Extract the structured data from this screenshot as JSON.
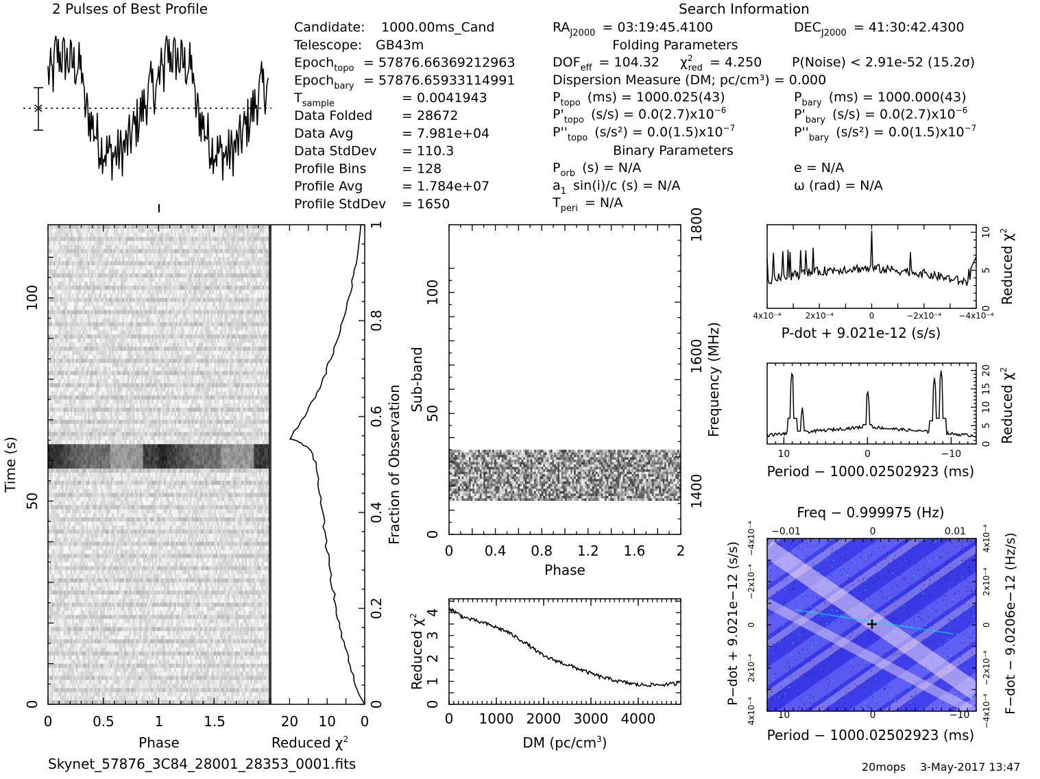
{
  "titles": {
    "profile": "2 Pulses of Best Profile",
    "search": "Search Information",
    "folding": "Folding Parameters",
    "binary": "Binary Parameters",
    "file": "Skynet_57876_3C84_28001_28353_0001.fits",
    "footer_user": "20mops",
    "footer_date": "3-May-2017 13:47"
  },
  "info_left": [
    {
      "label": "Candidate:",
      "value": "1000.00ms_Cand"
    },
    {
      "label": "Telescope:",
      "value": "GB43m"
    },
    {
      "label": "Epoch",
      "sub": "topo",
      "value": "= 57876.66369212963"
    },
    {
      "label": "Epoch",
      "sub": "bary",
      "value": "= 57876.65933114991"
    },
    {
      "label": "T",
      "sub": "sample",
      "value": "= 0.0041943"
    },
    {
      "label": "Data Folded",
      "value": "= 28672"
    },
    {
      "label": "Data Avg",
      "value": "= 7.981e+04"
    },
    {
      "label": "Data StdDev",
      "value": "= 110.3"
    },
    {
      "label": "Profile Bins",
      "value": "= 128"
    },
    {
      "label": "Profile Avg",
      "value": "= 1.784e+07"
    },
    {
      "label": "Profile StdDev",
      "value": "= 1650"
    }
  ],
  "info_right": {
    "ra": {
      "label": "RA",
      "sub": "J2000",
      "value": "= 03:19:45.4100"
    },
    "dec": {
      "label": "DEC",
      "sub": "J2000",
      "value": "= 41:30:42.4300"
    },
    "dof": {
      "label": "DOF",
      "sub": "eff",
      "value": "= 104.32"
    },
    "chi2": {
      "label": "χ",
      "sup": "2",
      "sub": "red",
      "value": "= 4.250"
    },
    "pnoise": "P(Noise) < 2.91e-52  (15.2σ)",
    "dm": "Dispersion Measure (DM; pc/cm³) = 0.000",
    "ptopo": {
      "label": "P",
      "sub": "topo",
      "value": "(ms) =  1000.025(43)"
    },
    "pbary": {
      "label": "P",
      "sub": "bary",
      "value": "(ms) =  1000.000(43)"
    },
    "pdtopo": {
      "label": "P'",
      "sub": "topo",
      "value": "(s/s) = 0.0(2.7)x10",
      "exp": "−6"
    },
    "pdbary": {
      "label": "P'",
      "sub": "bary",
      "value": "(s/s) = 0.0(2.7)x10",
      "exp": "−6"
    },
    "pddtopo": {
      "label": "P''",
      "sub": "topo",
      "value": "(s/s²) = 0.0(1.5)x10",
      "exp": "−7"
    },
    "pddbary": {
      "label": "P''",
      "sub": "bary",
      "value": "(s/s²) = 0.0(1.5)x10",
      "exp": "−7"
    },
    "porb": {
      "label": "P",
      "sub": "orb",
      "value": "(s) = N/A"
    },
    "ecc": "e = N/A",
    "asini": {
      "label": "a",
      "sub": "1",
      "value": "sin(i)/c (s) = N/A"
    },
    "omega": "ω (rad) = N/A",
    "tperi": {
      "label": "T",
      "sub": "peri",
      "value": "= N/A"
    }
  },
  "colors": {
    "axis": "#000000",
    "cmap_low": "#2b2bd6",
    "cmap_mid": "#6f6fff",
    "cmap_high": "#e8d8f0",
    "cmap_peak": "#00e5e5"
  },
  "chart_data": [
    {
      "id": "profile",
      "type": "line",
      "title": "2 Pulses of Best Profile",
      "x_range": [
        0,
        2
      ],
      "bins": 128,
      "description": "Two identical cycles of a noisy profile; high at phase 0-0.35, low near 0.5-0.7",
      "errorbar": true
    },
    {
      "id": "time-phase",
      "type": "heatmap",
      "xlabel": "Phase",
      "ylabel": "Time (s)",
      "x_ticks": [
        "0",
        "0.5",
        "1",
        "1.5"
      ],
      "x_range": [
        0,
        2
      ],
      "y_ticks": [
        "0",
        "50",
        "100"
      ],
      "y_range": [
        0,
        118
      ],
      "bright_band_time": [
        59,
        64
      ]
    },
    {
      "id": "time-chi2",
      "type": "line",
      "xlabel": "Reduced χ²",
      "ylabel": "Fraction of Observation",
      "x_ticks": [
        "20",
        "10",
        "0"
      ],
      "x_range": [
        25,
        0
      ],
      "y_ticks": [
        "0",
        "0.2",
        "0.4",
        "0.6",
        "0.8",
        "1"
      ],
      "points": [
        [
          0.0,
          0
        ],
        [
          1.5,
          0.02
        ],
        [
          4,
          0.08
        ],
        [
          6,
          0.14
        ],
        [
          7.5,
          0.2
        ],
        [
          9,
          0.26
        ],
        [
          10,
          0.32
        ],
        [
          11,
          0.38
        ],
        [
          12,
          0.44
        ],
        [
          13,
          0.5
        ],
        [
          14,
          0.53
        ],
        [
          17,
          0.545
        ],
        [
          20,
          0.555
        ],
        [
          16,
          0.6
        ],
        [
          12,
          0.66
        ],
        [
          9,
          0.72
        ],
        [
          6,
          0.79
        ],
        [
          4,
          0.86
        ],
        [
          2,
          0.93
        ],
        [
          1,
          1.0
        ]
      ]
    },
    {
      "id": "subband-phase",
      "type": "heatmap",
      "xlabel": "Phase",
      "ylabel": "Sub-band",
      "y2label": "Frequency (MHz)",
      "x_ticks": [
        "0",
        "0.4",
        "0.8",
        "1.2",
        "1.6",
        "2"
      ],
      "x_range": [
        0,
        2
      ],
      "y_ticks": [
        "0",
        "50",
        "100"
      ],
      "y_range": [
        0,
        128
      ],
      "y2_ticks": [
        "1400",
        "1600",
        "1800"
      ],
      "band_subbands": [
        14,
        35
      ]
    },
    {
      "id": "dm-chi2",
      "type": "line",
      "xlabel": "DM (pc/cm³)",
      "ylabel": "Reduced χ²",
      "x_ticks": [
        "0",
        "1000",
        "2000",
        "3000",
        "4000"
      ],
      "x_range": [
        0,
        4900
      ],
      "y_ticks": [
        "0",
        "1",
        "2",
        "3",
        "4"
      ],
      "y_range": [
        0,
        4.6
      ],
      "points": [
        [
          0,
          4.2
        ],
        [
          300,
          3.8
        ],
        [
          800,
          3.5
        ],
        [
          1200,
          3.2
        ],
        [
          1600,
          2.7
        ],
        [
          2000,
          2.1
        ],
        [
          2400,
          1.8
        ],
        [
          2800,
          1.5
        ],
        [
          3200,
          1.2
        ],
        [
          3600,
          1.0
        ],
        [
          4000,
          0.85
        ],
        [
          4400,
          0.85
        ],
        [
          4900,
          0.9
        ]
      ]
    },
    {
      "id": "pdot-chi2",
      "type": "line",
      "xlabel": "P-dot + 9.021e-12 (s/s)",
      "ylabel": "Reduced χ²",
      "x_ticks": [
        "4x10⁻⁴",
        "2x10⁻⁴",
        "0",
        "−2x10⁻⁴",
        "−4x10⁻⁴"
      ],
      "y_ticks": [
        "0",
        "5",
        "10"
      ],
      "y_range": [
        0,
        11
      ]
    },
    {
      "id": "period-chi2",
      "type": "line",
      "xlabel": "Period − 1000.02502923 (ms)",
      "ylabel": "Reduced χ²",
      "x_ticks": [
        "10",
        "0",
        "−10"
      ],
      "x_range": [
        12,
        -13
      ],
      "y_ticks": [
        "0",
        "5",
        "10",
        "15",
        "20"
      ],
      "y_range": [
        0,
        22
      ],
      "peaks": [
        [
          9,
          20
        ],
        [
          7.8,
          10
        ],
        [
          0,
          15
        ],
        [
          -8,
          18
        ],
        [
          -8.8,
          20
        ]
      ]
    },
    {
      "id": "pp-dot",
      "type": "heatmap",
      "title": "Freq − 0.999975 (Hz)",
      "xlabel": "Period − 1000.02502923 (ms)",
      "ylabel": "P−dot + 9.021e−12 (s/s)",
      "y2label": "F−dot − 9.0206e−12 (Hz/s)",
      "x_ticks": [
        "10",
        "0",
        "−10"
      ],
      "x2_ticks": [
        "−0.01",
        "0",
        "0.01"
      ],
      "y_ticks": [
        "4x10⁻⁴",
        "2x10⁻⁴",
        "0",
        "−2x10⁻⁴",
        "−4x10⁻⁴"
      ],
      "y2_ticks": [
        "−4x10⁻⁴",
        "−2x10⁻⁴",
        "0",
        "2x10⁻⁴",
        "4x10⁻⁴"
      ]
    }
  ]
}
